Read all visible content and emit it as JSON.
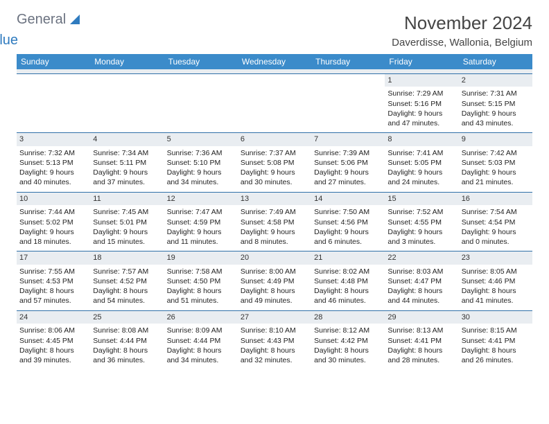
{
  "logo": {
    "word1": "General",
    "word2": "Blue"
  },
  "title": "November 2024",
  "location": "Daverdisse, Wallonia, Belgium",
  "colors": {
    "header_bg": "#3b8bca",
    "header_text": "#ffffff",
    "daynum_bg": "#e9edf1",
    "rule": "#2f6fa8",
    "body_text": "#222222",
    "title_text": "#444444",
    "logo_gray": "#6b7280",
    "logo_blue": "#2f7bbf",
    "page_bg": "#ffffff"
  },
  "typography": {
    "title_fontsize": 26,
    "location_fontsize": 15,
    "dayhead_fontsize": 12,
    "cell_fontsize": 10.5,
    "daynum_fontsize": 11
  },
  "day_headers": [
    "Sunday",
    "Monday",
    "Tuesday",
    "Wednesday",
    "Thursday",
    "Friday",
    "Saturday"
  ],
  "weeks": [
    [
      null,
      null,
      null,
      null,
      null,
      {
        "n": "1",
        "sr": "Sunrise: 7:29 AM",
        "ss": "Sunset: 5:16 PM",
        "dl": "Daylight: 9 hours and 47 minutes."
      },
      {
        "n": "2",
        "sr": "Sunrise: 7:31 AM",
        "ss": "Sunset: 5:15 PM",
        "dl": "Daylight: 9 hours and 43 minutes."
      }
    ],
    [
      {
        "n": "3",
        "sr": "Sunrise: 7:32 AM",
        "ss": "Sunset: 5:13 PM",
        "dl": "Daylight: 9 hours and 40 minutes."
      },
      {
        "n": "4",
        "sr": "Sunrise: 7:34 AM",
        "ss": "Sunset: 5:11 PM",
        "dl": "Daylight: 9 hours and 37 minutes."
      },
      {
        "n": "5",
        "sr": "Sunrise: 7:36 AM",
        "ss": "Sunset: 5:10 PM",
        "dl": "Daylight: 9 hours and 34 minutes."
      },
      {
        "n": "6",
        "sr": "Sunrise: 7:37 AM",
        "ss": "Sunset: 5:08 PM",
        "dl": "Daylight: 9 hours and 30 minutes."
      },
      {
        "n": "7",
        "sr": "Sunrise: 7:39 AM",
        "ss": "Sunset: 5:06 PM",
        "dl": "Daylight: 9 hours and 27 minutes."
      },
      {
        "n": "8",
        "sr": "Sunrise: 7:41 AM",
        "ss": "Sunset: 5:05 PM",
        "dl": "Daylight: 9 hours and 24 minutes."
      },
      {
        "n": "9",
        "sr": "Sunrise: 7:42 AM",
        "ss": "Sunset: 5:03 PM",
        "dl": "Daylight: 9 hours and 21 minutes."
      }
    ],
    [
      {
        "n": "10",
        "sr": "Sunrise: 7:44 AM",
        "ss": "Sunset: 5:02 PM",
        "dl": "Daylight: 9 hours and 18 minutes."
      },
      {
        "n": "11",
        "sr": "Sunrise: 7:45 AM",
        "ss": "Sunset: 5:01 PM",
        "dl": "Daylight: 9 hours and 15 minutes."
      },
      {
        "n": "12",
        "sr": "Sunrise: 7:47 AM",
        "ss": "Sunset: 4:59 PM",
        "dl": "Daylight: 9 hours and 11 minutes."
      },
      {
        "n": "13",
        "sr": "Sunrise: 7:49 AM",
        "ss": "Sunset: 4:58 PM",
        "dl": "Daylight: 9 hours and 8 minutes."
      },
      {
        "n": "14",
        "sr": "Sunrise: 7:50 AM",
        "ss": "Sunset: 4:56 PM",
        "dl": "Daylight: 9 hours and 6 minutes."
      },
      {
        "n": "15",
        "sr": "Sunrise: 7:52 AM",
        "ss": "Sunset: 4:55 PM",
        "dl": "Daylight: 9 hours and 3 minutes."
      },
      {
        "n": "16",
        "sr": "Sunrise: 7:54 AM",
        "ss": "Sunset: 4:54 PM",
        "dl": "Daylight: 9 hours and 0 minutes."
      }
    ],
    [
      {
        "n": "17",
        "sr": "Sunrise: 7:55 AM",
        "ss": "Sunset: 4:53 PM",
        "dl": "Daylight: 8 hours and 57 minutes."
      },
      {
        "n": "18",
        "sr": "Sunrise: 7:57 AM",
        "ss": "Sunset: 4:52 PM",
        "dl": "Daylight: 8 hours and 54 minutes."
      },
      {
        "n": "19",
        "sr": "Sunrise: 7:58 AM",
        "ss": "Sunset: 4:50 PM",
        "dl": "Daylight: 8 hours and 51 minutes."
      },
      {
        "n": "20",
        "sr": "Sunrise: 8:00 AM",
        "ss": "Sunset: 4:49 PM",
        "dl": "Daylight: 8 hours and 49 minutes."
      },
      {
        "n": "21",
        "sr": "Sunrise: 8:02 AM",
        "ss": "Sunset: 4:48 PM",
        "dl": "Daylight: 8 hours and 46 minutes."
      },
      {
        "n": "22",
        "sr": "Sunrise: 8:03 AM",
        "ss": "Sunset: 4:47 PM",
        "dl": "Daylight: 8 hours and 44 minutes."
      },
      {
        "n": "23",
        "sr": "Sunrise: 8:05 AM",
        "ss": "Sunset: 4:46 PM",
        "dl": "Daylight: 8 hours and 41 minutes."
      }
    ],
    [
      {
        "n": "24",
        "sr": "Sunrise: 8:06 AM",
        "ss": "Sunset: 4:45 PM",
        "dl": "Daylight: 8 hours and 39 minutes."
      },
      {
        "n": "25",
        "sr": "Sunrise: 8:08 AM",
        "ss": "Sunset: 4:44 PM",
        "dl": "Daylight: 8 hours and 36 minutes."
      },
      {
        "n": "26",
        "sr": "Sunrise: 8:09 AM",
        "ss": "Sunset: 4:44 PM",
        "dl": "Daylight: 8 hours and 34 minutes."
      },
      {
        "n": "27",
        "sr": "Sunrise: 8:10 AM",
        "ss": "Sunset: 4:43 PM",
        "dl": "Daylight: 8 hours and 32 minutes."
      },
      {
        "n": "28",
        "sr": "Sunrise: 8:12 AM",
        "ss": "Sunset: 4:42 PM",
        "dl": "Daylight: 8 hours and 30 minutes."
      },
      {
        "n": "29",
        "sr": "Sunrise: 8:13 AM",
        "ss": "Sunset: 4:41 PM",
        "dl": "Daylight: 8 hours and 28 minutes."
      },
      {
        "n": "30",
        "sr": "Sunrise: 8:15 AM",
        "ss": "Sunset: 4:41 PM",
        "dl": "Daylight: 8 hours and 26 minutes."
      }
    ]
  ]
}
